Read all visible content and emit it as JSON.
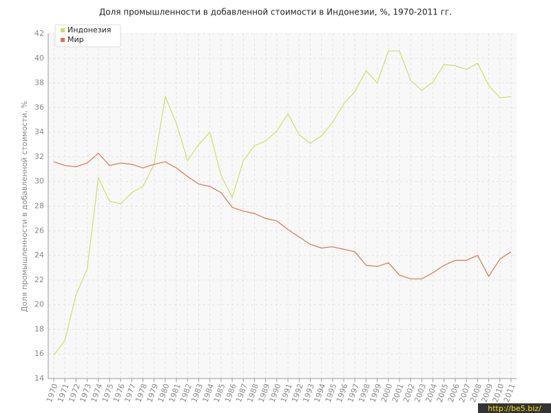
{
  "chart_data": {
    "type": "line",
    "title": "Доля промышленности в добавленной стоимости в Индонезии, %, 1970-2011 гг.",
    "y_label": "Доля промышленности в добавленной стоимости, %",
    "categories": [
      "1970",
      "1971",
      "1972",
      "1973",
      "1974",
      "1975",
      "1976",
      "1977",
      "1978",
      "1979",
      "1980",
      "1981",
      "1982",
      "1983",
      "1984",
      "1985",
      "1986",
      "1987",
      "1988",
      "1989",
      "1990",
      "1991",
      "1992",
      "1993",
      "1994",
      "1995",
      "1996",
      "1997",
      "1998",
      "1999",
      "2000",
      "2001",
      "2002",
      "2003",
      "2004",
      "2005",
      "2006",
      "2007",
      "2008",
      "2009",
      "2010",
      "2011"
    ],
    "series": [
      {
        "name": "Индонезия",
        "color": "#c9e064",
        "values": [
          15.9,
          17.1,
          20.8,
          22.9,
          30.3,
          28.4,
          28.2,
          29.1,
          29.6,
          31.4,
          36.9,
          34.7,
          31.7,
          33.0,
          34.0,
          30.5,
          28.7,
          31.7,
          32.9,
          33.3,
          34.1,
          35.5,
          33.8,
          33.1,
          33.7,
          34.8,
          36.3,
          37.3,
          39.0,
          38.0,
          40.6,
          40.6,
          38.2,
          37.4,
          38.1,
          39.5,
          39.4,
          39.1,
          39.6,
          37.8,
          36.8,
          36.9
        ]
      },
      {
        "name": "Мир",
        "color": "#e0714c",
        "values": [
          31.6,
          31.3,
          31.2,
          31.5,
          32.3,
          31.3,
          31.5,
          31.4,
          31.1,
          31.4,
          31.6,
          31.1,
          30.4,
          29.8,
          29.6,
          29.1,
          27.9,
          27.6,
          27.4,
          27.0,
          26.8,
          26.1,
          25.5,
          24.9,
          24.6,
          24.7,
          24.5,
          24.3,
          23.2,
          23.1,
          23.4,
          22.4,
          22.1,
          22.1,
          22.6,
          23.2,
          23.6,
          23.6,
          24.0,
          22.3,
          23.7,
          24.3
        ]
      }
    ],
    "ylim": [
      14,
      42
    ],
    "yticks": [
      14,
      16,
      18,
      20,
      22,
      24,
      26,
      28,
      30,
      32,
      34,
      36,
      38,
      40,
      42
    ],
    "grid": true,
    "legend": "top-left"
  },
  "watermark": "http://be5.biz/"
}
